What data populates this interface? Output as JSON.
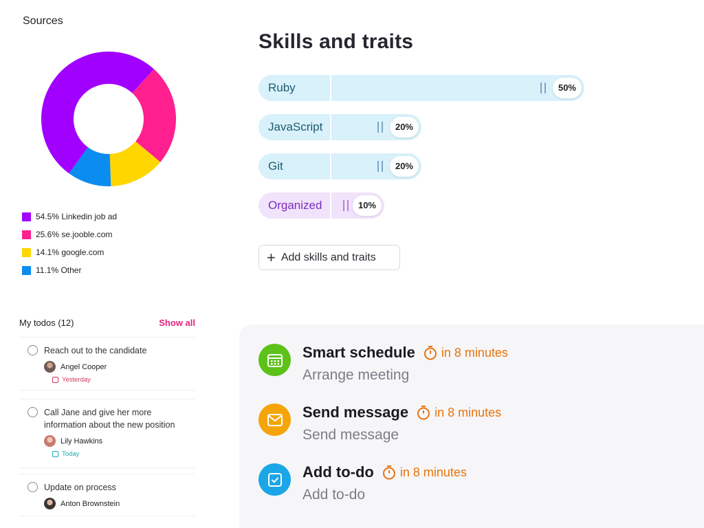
{
  "sources": {
    "title": "Sources",
    "legend": [
      {
        "label": "54.5% Linkedin job ad",
        "color": "#a100ff"
      },
      {
        "label": "25.6% se.jooble.com",
        "color": "#ff1f8e"
      },
      {
        "label": "14.1% google.com",
        "color": "#ffd600"
      },
      {
        "label": "11.1% Other",
        "color": "#0a8cf0"
      }
    ]
  },
  "chart_data": {
    "type": "pie",
    "labels": [
      "Linkedin job ad",
      "se.jooble.com",
      "google.com",
      "Other"
    ],
    "values": [
      54.5,
      25.6,
      14.1,
      11.1
    ],
    "colors": [
      "#a100ff",
      "#ff1f8e",
      "#ffd600",
      "#0a8cf0"
    ],
    "donut": true
  },
  "skills": {
    "title": "Skills and traits",
    "items": [
      {
        "name": "Ruby",
        "percent_label": "50%",
        "level": 0.5
      },
      {
        "name": "JavaScript",
        "percent_label": "20%",
        "level": 0.2
      },
      {
        "name": "Git",
        "percent_label": "20%",
        "level": 0.2
      },
      {
        "name": "Organized",
        "percent_label": "10%",
        "level": 0.1
      }
    ],
    "add_label": "Add skills and traits"
  },
  "todos": {
    "title": "My todos (12)",
    "show_all": "Show all",
    "items": [
      {
        "task": "Reach out to the candidate",
        "person": "Angel Cooper",
        "due": "Yesterday"
      },
      {
        "task": "Call Jane and give her more information about the new position",
        "person": "Lily Hawkins",
        "due": "Today"
      },
      {
        "task": "Update on process",
        "person": "Anton Brownstein"
      }
    ]
  },
  "activities": [
    {
      "title": "Smart schedule",
      "time": "in 8 minutes",
      "subtitle": "Arrange meeting",
      "icon": "calendar-icon",
      "color": "#5cc21a"
    },
    {
      "title": "Send message",
      "time": "in 8 minutes",
      "subtitle": "Send message",
      "icon": "envelope-icon",
      "color": "#f5a50a"
    },
    {
      "title": "Add to-do",
      "time": "in 8 minutes",
      "subtitle": "Add to-do",
      "icon": "checkbox-icon",
      "color": "#1ba6e8"
    }
  ]
}
